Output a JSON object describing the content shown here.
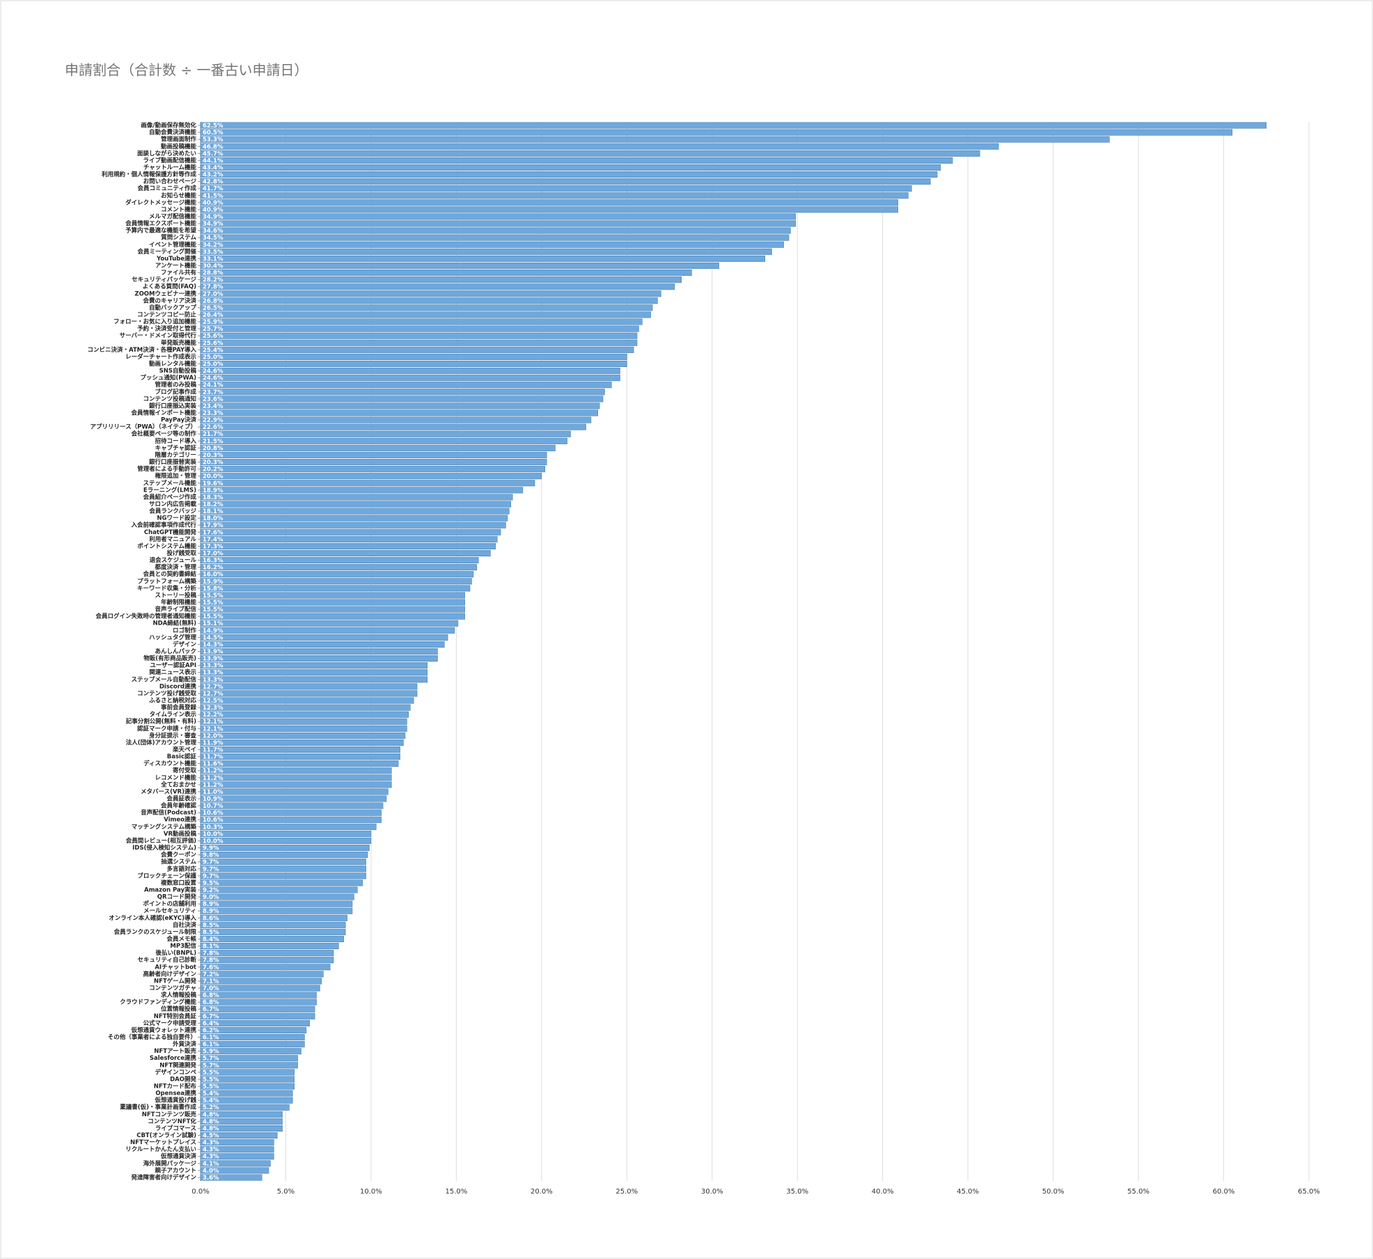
{
  "chart_data": {
    "type": "barh",
    "title": "申請割合（合計数 ÷ 一番古い申請日）",
    "color": "#6fa8dc",
    "grid": true,
    "categories": [
      "画像/動画保存無効化",
      "自動会費決済機能",
      "管理画面制作",
      "動画投稿機能",
      "面談しながら決めたい",
      "ライブ動画配信機能",
      "チャットルーム機能",
      "利用規約・個人情報保護方針等作成",
      "お問い合わせページ",
      "会員コミュニティ作成",
      "お知らせ機能",
      "ダイレクトメッセージ機能",
      "コメント機能",
      "メルマガ配信機能",
      "会員情報エクスポート機能",
      "予算内で最適な機能を希望",
      "質問システム",
      "イベント管理機能",
      "会員ミーティング開催",
      "YouTube連携",
      "アンケート機能",
      "ファイル共有",
      "セキュリティパッケージ",
      "よくある質問(FAQ)",
      "ZOOMウェビナー連携",
      "会費のキャリア決済",
      "自動バックアップ",
      "コンテンツコピー防止",
      "フォロー・お気に入り追加機能",
      "予約・決済受付と管理",
      "サーバー・ドメイン取得代行",
      "単発販売機能",
      "コンビニ決済・ATM決済・各種PAY導入",
      "レーダーチャート作成表示",
      "動画レンタル機能",
      "SNS自動投稿",
      "プッシュ通知(PWA)",
      "管理者のみ投稿",
      "ブログ記事作成",
      "コンテンツ投稿通知",
      "銀行口座振込実装",
      "会員情報インポート機能",
      "PayPay決済",
      "アプリリリース（PWA）（ネイティブ）",
      "会社概要ページ等の制作",
      "招待コード導入",
      "キャプチャ認証",
      "階層カテゴリー",
      "銀行口座振替実装",
      "管理者による手動許可",
      "権限追加・管理",
      "ステップメール機能",
      "Eラーニング(LMS)",
      "会員紹介ページ作成",
      "サロン内広告掲載",
      "会員ランクバッジ",
      "NGワード設定",
      "入会前確認事項作成代行",
      "ChatGPT機能開発",
      "利用者マニュアル",
      "ポイントシステム機能",
      "投げ銭受取",
      "退会スケジュール",
      "都度決済・管理",
      "会員との契約書締結",
      "プラットフォーム構築",
      "キーワード収集・分析",
      "ストーリー投稿",
      "年齢制限機能",
      "音声ライブ配信",
      "会員ログイン失敗時の管理者通知機能",
      "NDA締結(無料)",
      "ロゴ制作",
      "ハッシュタグ管理",
      "デザイン",
      "あんしんパック",
      "物販(有形商品販売)",
      "ユーザー認証API",
      "関連ニュース表示",
      "ステップメール自動配信",
      "Discord連携",
      "コンテンツ投げ銭受取",
      "ふるさと納税対応",
      "事前会員登録",
      "タイムライン表示",
      "記事分割公開(無料・有料)",
      "認証マーク申請・付与",
      "身分証提示・審査",
      "法人(団体)アカウント管理",
      "楽天ペイ",
      "Basic認証",
      "ディスカウント機能",
      "寄付受取",
      "レコメンド機能",
      "全ておまかせ",
      "メタバース(VR)連携",
      "会員証表示",
      "会員年齢確認",
      "音声配信(Podcast)",
      "Vimeo連携",
      "マッチングシステム構築",
      "VR動画投稿",
      "会員間レビュー(相互評価)",
      "IDS(侵入検知システム)",
      "会費クーポン",
      "抽選システム",
      "多言語対応",
      "ブロックチェーン保護",
      "複数窓口設置",
      "Amazon Pay実装",
      "QRコード開発",
      "ポイントの店舗利用",
      "メールセキュリティ",
      "オンライン本人確認(eKYC)導入",
      "自社決済",
      "会員ランクのスケジュール制限",
      "会員メモ帳",
      "MP3配信",
      "後払い(BNPL)",
      "セキュリティ自己診断",
      "AIチャットbot",
      "高齢者向けデザイン",
      "NFTゲーム開発",
      "コンテンツガチャ",
      "求人情報投稿",
      "クラウドファンディング機能",
      "位置情報投稿",
      "NFT特別会員証",
      "公式マーク申請受理",
      "仮想通貨ウォレット連携",
      "その他（事業者による独自要件）",
      "外貨決済",
      "NFTアート販売",
      "Salesforce連携",
      "NFT関連開発",
      "デザインコンペ",
      "DAO開発",
      "NFTカード配布",
      "Opensea連携",
      "仮想通貨投げ銭",
      "稟議書(仮)・事業計画書作成",
      "NFTコンテンツ販売",
      "コンテンツNFT化",
      "ライブコマース",
      "CBT(オンライン試験)",
      "NFTマーケットプレイス",
      "リクルートかんたん支払い",
      "仮想通貨決済",
      "海外展開パッケージ",
      "親子アカウント",
      "発達障害者向けデザイン"
    ],
    "values": [
      62.5,
      60.5,
      53.3,
      46.8,
      45.7,
      44.1,
      43.4,
      43.2,
      42.8,
      41.7,
      41.5,
      40.9,
      40.9,
      34.9,
      34.9,
      34.6,
      34.5,
      34.2,
      33.5,
      33.1,
      30.4,
      28.8,
      28.2,
      27.8,
      27.0,
      26.8,
      26.5,
      26.4,
      25.9,
      25.7,
      25.6,
      25.6,
      25.4,
      25.0,
      25.0,
      24.6,
      24.6,
      24.1,
      23.7,
      23.6,
      23.4,
      23.3,
      22.9,
      22.6,
      21.7,
      21.5,
      20.8,
      20.3,
      20.3,
      20.2,
      20.0,
      19.6,
      18.9,
      18.3,
      18.2,
      18.1,
      18.0,
      17.9,
      17.6,
      17.4,
      17.3,
      17.0,
      16.3,
      16.2,
      16.0,
      15.9,
      15.8,
      15.5,
      15.5,
      15.5,
      15.5,
      15.1,
      14.9,
      14.5,
      14.3,
      13.9,
      13.9,
      13.3,
      13.3,
      13.3,
      12.7,
      12.7,
      12.5,
      12.3,
      12.2,
      12.1,
      12.1,
      12.0,
      11.9,
      11.7,
      11.7,
      11.6,
      11.2,
      11.2,
      11.2,
      11.0,
      10.9,
      10.7,
      10.6,
      10.6,
      10.3,
      10.0,
      10.0,
      9.9,
      9.8,
      9.7,
      9.7,
      9.7,
      9.5,
      9.2,
      9.0,
      8.9,
      8.9,
      8.6,
      8.5,
      8.5,
      8.4,
      8.1,
      7.8,
      7.8,
      7.6,
      7.2,
      7.1,
      7.0,
      6.8,
      6.8,
      6.7,
      6.7,
      6.4,
      6.2,
      6.1,
      6.1,
      5.9,
      5.7,
      5.7,
      5.5,
      5.5,
      5.5,
      5.4,
      5.4,
      5.2,
      4.8,
      4.8,
      4.8,
      4.5,
      4.3,
      4.3,
      4.3,
      4.1,
      4.0,
      3.6
    ],
    "value_labels": [
      "62.5%",
      "60.5%",
      "53.3%",
      "46.8%",
      "45.7%",
      "44.1%",
      "43.4%",
      "43.2%",
      "42.8%",
      "41.7%",
      "41.5%",
      "40.9%",
      "40.9%",
      "34.9%",
      "34.9%",
      "34.6%",
      "34.5%",
      "34.2%",
      "33.5%",
      "33.1%",
      "30.4%",
      "28.8%",
      "28.2%",
      "27.8%",
      "27.0%",
      "26.8%",
      "26.5%",
      "26.4%",
      "25.9%",
      "25.7%",
      "25.6%",
      "25.6%",
      "25.4%",
      "25.0%",
      "25.0%",
      "24.6%",
      "24.6%",
      "24.1%",
      "23.7%",
      "23.6%",
      "23.4%",
      "23.3%",
      "22.9%",
      "22.6%",
      "21.7%",
      "21.5%",
      "20.8%",
      "20.3%",
      "20.3%",
      "20.2%",
      "20.0%",
      "19.6%",
      "18.9%",
      "18.3%",
      "18.2%",
      "18.1%",
      "18.0%",
      "17.9%",
      "17.6%",
      "17.4%",
      "17.3%",
      "17.0%",
      "16.3%",
      "16.2%",
      "16.0%",
      "15.9%",
      "15.8%",
      "15.5%",
      "15.5%",
      "15.5%",
      "15.5%",
      "15.1%",
      "14.9%",
      "14.5%",
      "14.3%",
      "13.9%",
      "13.9%",
      "13.3%",
      "13.3%",
      "13.3%",
      "12.7%",
      "12.7%",
      "12.5%",
      "12.3%",
      "12.2%",
      "12.1%",
      "12.1%",
      "12.0%",
      "11.9%",
      "11.7%",
      "11.7%",
      "11.6%",
      "11.2%",
      "11.2%",
      "11.2%",
      "11.0%",
      "10.9%",
      "10.7%",
      "10.6%",
      "10.6%",
      "10.3%",
      "10.0%",
      "10.0%",
      "9.9%",
      "9.8%",
      "9.7%",
      "9.7%",
      "9.7%",
      "9.5%",
      "9.2%",
      "9.0%",
      "8.9%",
      "8.9%",
      "8.6%",
      "8.5%",
      "8.5%",
      "8.4%",
      "8.1%",
      "7.8%",
      "7.8%",
      "7.6%",
      "7.2%",
      "7.1%",
      "7.0%",
      "6.8%",
      "6.8%",
      "6.7%",
      "6.7%",
      "6.4%",
      "6.2%",
      "6.1%",
      "6.1%",
      "5.9%",
      "5.7%",
      "5.7%",
      "5.5%",
      "5.5%",
      "5.5%",
      "5.4%",
      "5.4%",
      "5.2%",
      "4.8%",
      "4.8%",
      "4.8%",
      "4.5%",
      "4.3%",
      "4.3%",
      "4.3%",
      "4.1%",
      "4.0%",
      "3.6%"
    ],
    "xlim": [
      0,
      65
    ],
    "xticks": [
      {
        "value": 0,
        "label": "0.0%"
      },
      {
        "value": 5,
        "label": "5.0%"
      },
      {
        "value": 10,
        "label": "10.0%"
      },
      {
        "value": 15,
        "label": "15.0%"
      },
      {
        "value": 20,
        "label": "20.0%"
      },
      {
        "value": 25,
        "label": "25.0%"
      },
      {
        "value": 30,
        "label": "30.0%"
      },
      {
        "value": 35,
        "label": "35.0%"
      },
      {
        "value": 40,
        "label": "40.0%"
      },
      {
        "value": 45,
        "label": "45.0%"
      },
      {
        "value": 50,
        "label": "50.0%"
      },
      {
        "value": 55,
        "label": "55.0%"
      },
      {
        "value": 60,
        "label": "60.0%"
      },
      {
        "value": 65,
        "label": "65.0%"
      }
    ]
  }
}
